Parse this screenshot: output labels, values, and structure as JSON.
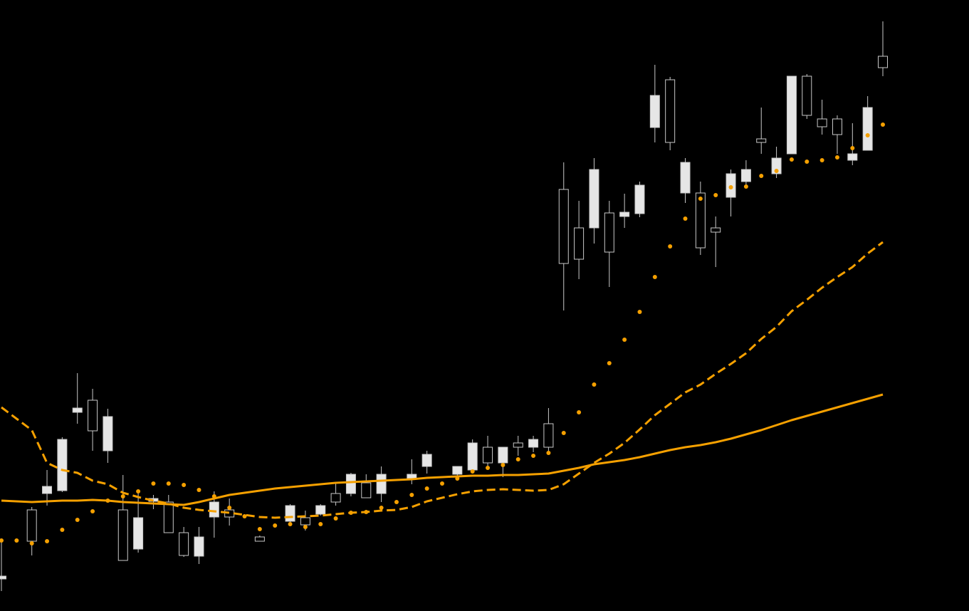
{
  "chart_data": {
    "type": "candlestick",
    "categories": [
      null,
      null,
      null,
      null,
      null,
      null,
      null,
      null,
      null,
      null,
      null,
      null,
      null,
      null,
      null,
      null,
      null,
      null,
      null,
      null,
      null,
      null,
      null,
      null,
      null,
      null,
      null,
      null,
      null,
      null,
      null,
      null,
      null,
      null,
      null,
      null,
      null,
      null,
      null,
      null,
      null,
      null,
      null,
      null,
      null,
      null,
      null,
      null,
      null,
      null,
      null,
      null,
      null,
      null,
      null,
      null,
      null,
      null,
      null
    ],
    "open": [
      49,
      null,
      98,
      175,
      241,
      285,
      253,
      273,
      71,
      131,
      158,
      110,
      78,
      104,
      153,
      132,
      null,
      98,
      null,
      148,
      121,
      148,
      153,
      192,
      159,
      192,
      null,
      192,
      220,
      null,
      203,
      236,
      208,
      230,
      230,
      241,
      230,
      488,
      494,
      620,
      504,
      560,
      598,
      724,
      658,
      630,
      510,
      532,
      614,
      620,
      658,
      636,
      751,
      696,
      680,
      669,
      642,
      707,
      763
    ],
    "high": [
      98,
      null,
      146,
      198,
      244,
      334,
      312,
      284,
      191,
      168,
      163,
      163,
      118,
      118,
      168,
      158,
      null,
      106,
      null,
      150,
      141,
      150,
      181,
      194,
      192,
      203,
      null,
      213,
      225,
      null,
      203,
      241,
      246,
      230,
      246,
      246,
      285,
      630,
      576,
      636,
      576,
      586,
      603,
      767,
      750,
      636,
      603,
      554,
      620,
      633,
      707,
      652,
      751,
      754,
      718,
      696,
      685,
      723,
      828
    ],
    "low": [
      28,
      null,
      78,
      148,
      167,
      263,
      225,
      208,
      71,
      82,
      143,
      110,
      76,
      66,
      103,
      120,
      null,
      98,
      null,
      124,
      113,
      134,
      148,
      161,
      159,
      153,
      null,
      178,
      193,
      null,
      183,
      193,
      203,
      188,
      218,
      223,
      223,
      422,
      466,
      516,
      455,
      538,
      553,
      658,
      647,
      573,
      500,
      483,
      554,
      598,
      642,
      608,
      642,
      691,
      669,
      642,
      626,
      647,
      751
    ],
    "close": [
      45,
      null,
      142,
      165,
      169,
      279,
      296,
      225,
      142,
      87,
      154,
      153,
      110,
      77,
      132,
      142,
      null,
      104,
      null,
      126,
      131,
      136,
      165,
      165,
      180,
      165,
      null,
      186,
      203,
      null,
      192,
      198,
      230,
      208,
      236,
      230,
      263,
      592,
      538,
      538,
      559,
      554,
      558,
      679,
      746,
      587,
      587,
      538,
      581,
      603,
      663,
      614,
      642,
      751,
      691,
      691,
      633,
      647,
      779
    ],
    "up_color": "#000000",
    "down_color": "#e6e6e6",
    "candle_stroke": "#c8c8c8",
    "series": [
      {
        "style": "dots",
        "color": "#f5a000",
        "values": [
          99,
          99,
          95,
          98,
          114,
          128,
          140,
          155,
          161,
          168,
          179,
          179,
          177,
          170,
          161,
          145,
          133,
          115,
          120,
          122,
          118,
          122,
          130,
          138,
          139,
          145,
          153,
          163,
          172,
          179,
          186,
          196,
          201,
          205,
          213,
          218,
          222,
          250,
          279,
          318,
          348,
          381,
          420,
          469,
          512,
          551,
          579,
          584,
          595,
          596,
          611,
          618,
          634,
          631,
          633,
          637,
          650,
          668,
          683
        ]
      },
      {
        "style": "solid",
        "color": "#f5a000",
        "values": [
          155,
          154,
          153,
          154,
          155,
          155,
          156,
          155,
          153,
          152,
          151,
          150,
          149,
          153,
          158,
          163,
          166,
          169,
          172,
          174,
          176,
          178,
          180,
          181,
          182,
          183,
          184,
          185,
          187,
          188,
          189,
          190,
          190,
          191,
          191,
          192,
          193,
          197,
          201,
          206,
          209,
          212,
          216,
          221,
          226,
          230,
          233,
          237,
          242,
          248,
          254,
          261,
          268,
          274,
          280,
          286,
          292,
          298,
          304
        ]
      },
      {
        "style": "dashed",
        "color": "#f5a000",
        "values": [
          286,
          270,
          254,
          208,
          198,
          194,
          183,
          178,
          166,
          160,
          155,
          151,
          145,
          142,
          140,
          138,
          135,
          132,
          131,
          132,
          133,
          134,
          136,
          138,
          139,
          141,
          142,
          146,
          154,
          159,
          164,
          168,
          170,
          171,
          170,
          169,
          170,
          178,
          193,
          208,
          221,
          236,
          255,
          275,
          291,
          307,
          318,
          333,
          347,
          362,
          382,
          399,
          421,
          437,
          454,
          469,
          483,
          502,
          518
        ]
      }
    ],
    "ylim": [
      0,
      858
    ],
    "background": "#000000"
  }
}
